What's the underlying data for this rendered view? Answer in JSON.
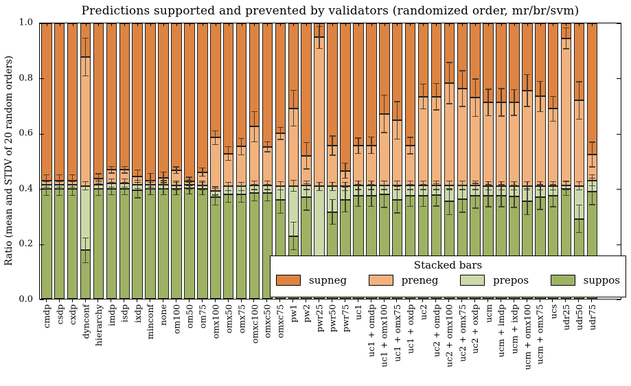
{
  "title": "Predictions supported and prevented by validators (randomized order, mr/br/svm)",
  "ylabel": "Ratio (mean and STDV of 20 random orders)",
  "legend": {
    "title": "Stacked bars",
    "entries": [
      {
        "label": "supneg",
        "color": "#de8442"
      },
      {
        "label": "preneg",
        "color": "#f2b27e"
      },
      {
        "label": "prepos",
        "color": "#cdd9ab"
      },
      {
        "label": "suppos",
        "color": "#9fb264"
      }
    ]
  },
  "colors": {
    "supneg": "#de8442",
    "preneg": "#f2b27e",
    "prepos": "#cdd9ab",
    "suppos": "#9fb264",
    "bar_edge": "#1f1f1f",
    "error_bar": "#3e3426",
    "axis": "#000000"
  },
  "chart_data": {
    "type": "bar",
    "stacked": true,
    "title": "Predictions supported and prevented by validators (randomized order, mr/br/svm)",
    "xlabel": "",
    "ylabel": "Ratio (mean and STDV of 20 random orders)",
    "ylim": [
      0.0,
      1.0
    ],
    "yticks": [
      0.0,
      0.2,
      0.4,
      0.6,
      0.8,
      1.0
    ],
    "ytick_labels": [
      "0.0",
      "0.2",
      "0.4",
      "0.6",
      "0.8",
      "1.0"
    ],
    "grid": false,
    "legend_position": "lower right inside plot",
    "stack_order_bottom_to_top": [
      "suppos",
      "prepos",
      "preneg",
      "supneg"
    ],
    "note": "Values are cumulative stack boundaries: suppos fills 0 to suppos_top, prepos to prepos_top, preneg to preneg_top, supneg to 1.0. err_* are STDV whisker half-lengths at each boundary.",
    "bars": [
      {
        "category": "cmdp",
        "suppos_top": 0.4,
        "prepos_top": 0.415,
        "preneg_top": 0.428,
        "supneg_top": 1.0,
        "err_preneg_top": 0.022,
        "err_prepos_top": 0.015,
        "err_suppos_top": 0.025
      },
      {
        "category": "csdp",
        "suppos_top": 0.4,
        "prepos_top": 0.415,
        "preneg_top": 0.428,
        "supneg_top": 1.0,
        "err_preneg_top": 0.022,
        "err_prepos_top": 0.015,
        "err_suppos_top": 0.025
      },
      {
        "category": "cxdp",
        "suppos_top": 0.4,
        "prepos_top": 0.415,
        "preneg_top": 0.428,
        "supneg_top": 1.0,
        "err_preneg_top": 0.022,
        "err_prepos_top": 0.015,
        "err_suppos_top": 0.025
      },
      {
        "category": "dynconf",
        "suppos_top": 0.176,
        "prepos_top": 0.41,
        "preneg_top": 0.878,
        "supneg_top": 1.0,
        "err_preneg_top": 0.068,
        "err_prepos_top": 0.015,
        "err_suppos_top": 0.045
      },
      {
        "category": "hierarchy",
        "suppos_top": 0.4,
        "prepos_top": 0.415,
        "preneg_top": 0.436,
        "supneg_top": 1.0,
        "err_preneg_top": 0.018,
        "err_prepos_top": 0.015,
        "err_suppos_top": 0.025
      },
      {
        "category": "imdp",
        "suppos_top": 0.4,
        "prepos_top": 0.42,
        "preneg_top": 0.468,
        "supneg_top": 1.0,
        "err_preneg_top": 0.012,
        "err_prepos_top": 0.015,
        "err_suppos_top": 0.022
      },
      {
        "category": "isdp",
        "suppos_top": 0.4,
        "prepos_top": 0.42,
        "preneg_top": 0.468,
        "supneg_top": 1.0,
        "err_preneg_top": 0.012,
        "err_prepos_top": 0.015,
        "err_suppos_top": 0.022
      },
      {
        "category": "ixdp",
        "suppos_top": 0.395,
        "prepos_top": 0.415,
        "preneg_top": 0.445,
        "supneg_top": 1.0,
        "err_preneg_top": 0.022,
        "err_prepos_top": 0.015,
        "err_suppos_top": 0.028
      },
      {
        "category": "minconf",
        "suppos_top": 0.4,
        "prepos_top": 0.414,
        "preneg_top": 0.43,
        "supneg_top": 1.0,
        "err_preneg_top": 0.025,
        "err_prepos_top": 0.015,
        "err_suppos_top": 0.022
      },
      {
        "category": "none",
        "suppos_top": 0.4,
        "prepos_top": 0.414,
        "preneg_top": 0.44,
        "supneg_top": 1.0,
        "err_preneg_top": 0.02,
        "err_prepos_top": 0.015,
        "err_suppos_top": 0.022
      },
      {
        "category": "om100",
        "suppos_top": 0.4,
        "prepos_top": 0.412,
        "preneg_top": 0.467,
        "supneg_top": 1.0,
        "err_preneg_top": 0.012,
        "err_prepos_top": 0.015,
        "err_suppos_top": 0.022
      },
      {
        "category": "om50",
        "suppos_top": 0.402,
        "prepos_top": 0.414,
        "preneg_top": 0.426,
        "supneg_top": 1.0,
        "err_preneg_top": 0.015,
        "err_prepos_top": 0.015,
        "err_suppos_top": 0.022
      },
      {
        "category": "om75",
        "suppos_top": 0.4,
        "prepos_top": 0.412,
        "preneg_top": 0.46,
        "supneg_top": 1.0,
        "err_preneg_top": 0.015,
        "err_prepos_top": 0.015,
        "err_suppos_top": 0.022
      },
      {
        "category": "omx100",
        "suppos_top": 0.37,
        "prepos_top": 0.392,
        "preneg_top": 0.585,
        "supneg_top": 1.0,
        "err_preneg_top": 0.025,
        "err_prepos_top": 0.015,
        "err_suppos_top": 0.03
      },
      {
        "category": "omx50",
        "suppos_top": 0.38,
        "prepos_top": 0.408,
        "preneg_top": 0.527,
        "supneg_top": 1.0,
        "err_preneg_top": 0.025,
        "err_prepos_top": 0.015,
        "err_suppos_top": 0.03
      },
      {
        "category": "omx75",
        "suppos_top": 0.38,
        "prepos_top": 0.408,
        "preneg_top": 0.553,
        "supneg_top": 1.0,
        "err_preneg_top": 0.03,
        "err_prepos_top": 0.015,
        "err_suppos_top": 0.03
      },
      {
        "category": "omxc100",
        "suppos_top": 0.385,
        "prepos_top": 0.412,
        "preneg_top": 0.625,
        "supneg_top": 1.0,
        "err_preneg_top": 0.055,
        "err_prepos_top": 0.015,
        "err_suppos_top": 0.03
      },
      {
        "category": "omxc50",
        "suppos_top": 0.385,
        "prepos_top": 0.412,
        "preneg_top": 0.552,
        "supneg_top": 1.0,
        "err_preneg_top": 0.018,
        "err_prepos_top": 0.015,
        "err_suppos_top": 0.03
      },
      {
        "category": "omxc75",
        "suppos_top": 0.36,
        "prepos_top": 0.41,
        "preneg_top": 0.601,
        "supneg_top": 1.0,
        "err_preneg_top": 0.022,
        "err_prepos_top": 0.015,
        "err_suppos_top": 0.05
      },
      {
        "category": "pw1",
        "suppos_top": 0.228,
        "prepos_top": 0.41,
        "preneg_top": 0.692,
        "supneg_top": 1.0,
        "err_preneg_top": 0.065,
        "err_prepos_top": 0.02,
        "err_suppos_top": 0.05
      },
      {
        "category": "pw2",
        "suppos_top": 0.37,
        "prepos_top": 0.412,
        "preneg_top": 0.519,
        "supneg_top": 1.0,
        "err_preneg_top": 0.048,
        "err_prepos_top": 0.015,
        "err_suppos_top": 0.048
      },
      {
        "category": "pwr25",
        "suppos_top": 0.06,
        "prepos_top": 0.408,
        "preneg_top": 0.949,
        "supneg_top": 1.0,
        "err_preneg_top": 0.04,
        "err_prepos_top": 0.015,
        "err_suppos_top": 0.03
      },
      {
        "category": "pwr50",
        "suppos_top": 0.315,
        "prepos_top": 0.408,
        "preneg_top": 0.556,
        "supneg_top": 1.0,
        "err_preneg_top": 0.035,
        "err_prepos_top": 0.015,
        "err_suppos_top": 0.045
      },
      {
        "category": "pwr75",
        "suppos_top": 0.36,
        "prepos_top": 0.408,
        "preneg_top": 0.465,
        "supneg_top": 1.0,
        "err_preneg_top": 0.028,
        "err_prepos_top": 0.015,
        "err_suppos_top": 0.045
      },
      {
        "category": "uc1",
        "suppos_top": 0.375,
        "prepos_top": 0.412,
        "preneg_top": 0.556,
        "supneg_top": 1.0,
        "err_preneg_top": 0.028,
        "err_prepos_top": 0.015,
        "err_suppos_top": 0.04
      },
      {
        "category": "uc1 + omdp",
        "suppos_top": 0.375,
        "prepos_top": 0.412,
        "preneg_top": 0.557,
        "supneg_top": 1.0,
        "err_preneg_top": 0.03,
        "err_prepos_top": 0.015,
        "err_suppos_top": 0.04
      },
      {
        "category": "uc1 + omx100",
        "suppos_top": 0.38,
        "prepos_top": 0.412,
        "preneg_top": 0.672,
        "supneg_top": 1.0,
        "err_preneg_top": 0.068,
        "err_prepos_top": 0.015,
        "err_suppos_top": 0.048
      },
      {
        "category": "uc1 + omx75",
        "suppos_top": 0.36,
        "prepos_top": 0.412,
        "preneg_top": 0.648,
        "supneg_top": 1.0,
        "err_preneg_top": 0.068,
        "err_prepos_top": 0.015,
        "err_suppos_top": 0.048
      },
      {
        "category": "uc1 + oxdp",
        "suppos_top": 0.375,
        "prepos_top": 0.412,
        "preneg_top": 0.556,
        "supneg_top": 1.0,
        "err_preneg_top": 0.03,
        "err_prepos_top": 0.015,
        "err_suppos_top": 0.04
      },
      {
        "category": "uc2",
        "suppos_top": 0.375,
        "prepos_top": 0.412,
        "preneg_top": 0.734,
        "supneg_top": 1.0,
        "err_preneg_top": 0.045,
        "err_prepos_top": 0.015,
        "err_suppos_top": 0.04
      },
      {
        "category": "uc2 + omdp",
        "suppos_top": 0.377,
        "prepos_top": 0.412,
        "preneg_top": 0.734,
        "supneg_top": 1.0,
        "err_preneg_top": 0.048,
        "err_prepos_top": 0.015,
        "err_suppos_top": 0.04
      },
      {
        "category": "uc2 + omx100",
        "suppos_top": 0.353,
        "prepos_top": 0.412,
        "preneg_top": 0.783,
        "supneg_top": 1.0,
        "err_preneg_top": 0.075,
        "err_prepos_top": 0.015,
        "err_suppos_top": 0.048
      },
      {
        "category": "uc2 + omx75",
        "suppos_top": 0.362,
        "prepos_top": 0.412,
        "preneg_top": 0.763,
        "supneg_top": 1.0,
        "err_preneg_top": 0.065,
        "err_prepos_top": 0.015,
        "err_suppos_top": 0.048
      },
      {
        "category": "uc2 + oxdp",
        "suppos_top": 0.374,
        "prepos_top": 0.412,
        "preneg_top": 0.73,
        "supneg_top": 1.0,
        "err_preneg_top": 0.068,
        "err_prepos_top": 0.015,
        "err_suppos_top": 0.045
      },
      {
        "category": "ucm",
        "suppos_top": 0.374,
        "prepos_top": 0.41,
        "preneg_top": 0.713,
        "supneg_top": 1.0,
        "err_preneg_top": 0.048,
        "err_prepos_top": 0.015,
        "err_suppos_top": 0.04
      },
      {
        "category": "ucm + imdp",
        "suppos_top": 0.374,
        "prepos_top": 0.41,
        "preneg_top": 0.713,
        "supneg_top": 1.0,
        "err_preneg_top": 0.05,
        "err_prepos_top": 0.015,
        "err_suppos_top": 0.04
      },
      {
        "category": "ucm + ixdp",
        "suppos_top": 0.372,
        "prepos_top": 0.41,
        "preneg_top": 0.713,
        "supneg_top": 1.0,
        "err_preneg_top": 0.047,
        "err_prepos_top": 0.015,
        "err_suppos_top": 0.04
      },
      {
        "category": "ucm + omx100",
        "suppos_top": 0.353,
        "prepos_top": 0.41,
        "preneg_top": 0.756,
        "supneg_top": 1.0,
        "err_preneg_top": 0.058,
        "err_prepos_top": 0.015,
        "err_suppos_top": 0.048
      },
      {
        "category": "ucm + omx75",
        "suppos_top": 0.369,
        "prepos_top": 0.41,
        "preneg_top": 0.735,
        "supneg_top": 1.0,
        "err_preneg_top": 0.055,
        "err_prepos_top": 0.015,
        "err_suppos_top": 0.045
      },
      {
        "category": "ucs",
        "suppos_top": 0.374,
        "prepos_top": 0.41,
        "preneg_top": 0.69,
        "supneg_top": 1.0,
        "err_preneg_top": 0.045,
        "err_prepos_top": 0.015,
        "err_suppos_top": 0.04
      },
      {
        "category": "udr25",
        "suppos_top": 0.4,
        "prepos_top": 0.412,
        "preneg_top": 0.946,
        "supneg_top": 1.0,
        "err_preneg_top": 0.038,
        "err_prepos_top": 0.015,
        "err_suppos_top": 0.025
      },
      {
        "category": "udr50",
        "suppos_top": 0.29,
        "prepos_top": 0.41,
        "preneg_top": 0.72,
        "supneg_top": 1.0,
        "err_preneg_top": 0.068,
        "err_prepos_top": 0.015,
        "err_suppos_top": 0.05
      },
      {
        "category": "udr75",
        "suppos_top": 0.39,
        "prepos_top": 0.43,
        "preneg_top": 0.524,
        "supneg_top": 1.0,
        "err_preneg_top": 0.045,
        "err_prepos_top": 0.02,
        "err_suppos_top": 0.048
      }
    ]
  }
}
